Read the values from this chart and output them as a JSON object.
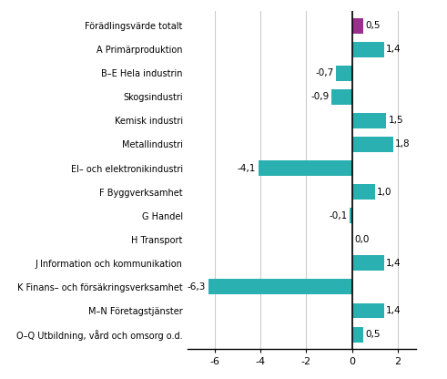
{
  "categories": [
    "O–Q Utbildning, vård och omsorg o.d.",
    "M–N Företagstjänster",
    "K Finans– och försäkringsverksamhet",
    "J Information och kommunikation",
    "H Transport",
    "G Handel",
    "F Byggverksamhet",
    "El– och elektronikindustri",
    "Metallindustri",
    "Kemisk industri",
    "Skogsindustri",
    "B–E Hela industrin",
    "A Primärproduktion",
    "Förädlingsvärde totalt"
  ],
  "values": [
    0.5,
    1.4,
    -6.3,
    1.4,
    0.0,
    -0.1,
    1.0,
    -4.1,
    1.8,
    1.5,
    -0.9,
    -0.7,
    1.4,
    0.5
  ],
  "bar_colors": [
    "#2ab0b0",
    "#2ab0b0",
    "#2ab0b0",
    "#2ab0b0",
    "#2ab0b0",
    "#2ab0b0",
    "#2ab0b0",
    "#2ab0b0",
    "#2ab0b0",
    "#2ab0b0",
    "#2ab0b0",
    "#2ab0b0",
    "#2ab0b0",
    "#9b2f8e"
  ],
  "xlim": [
    -7.2,
    2.8
  ],
  "xticks": [
    -6,
    -4,
    -2,
    0,
    2
  ],
  "grid_color": "#cccccc",
  "bar_height": 0.65,
  "value_labels": [
    "0,5",
    "1,4",
    "-6,3",
    "1,4",
    "0,0",
    "-0,1",
    "1,0",
    "-4,1",
    "1,8",
    "1,5",
    "-0,9",
    "-0,7",
    "1,4",
    "0,5"
  ],
  "label_fontsize": 7.0,
  "value_fontsize": 7.5
}
